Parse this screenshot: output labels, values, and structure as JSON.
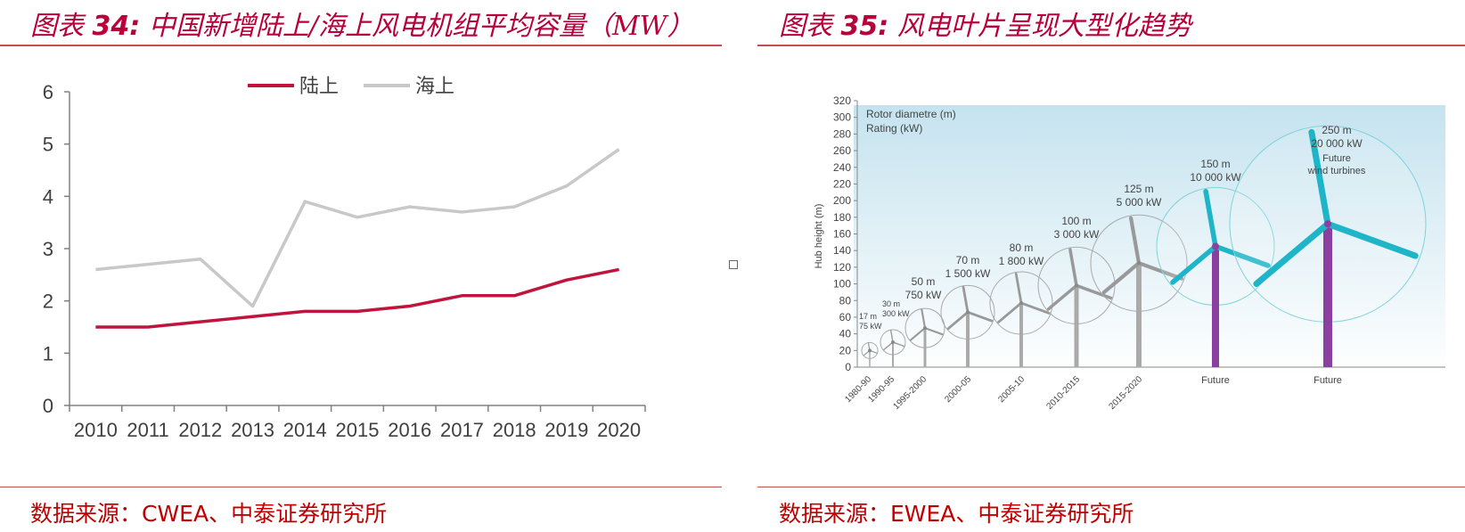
{
  "left": {
    "header": {
      "prefix": "图表 ",
      "num": "34:",
      "title": " 中国新增陆上/海上风电机组平均容量（MW）"
    },
    "source": "数据来源：CWEA、中泰证券研究所",
    "chart_data": {
      "type": "line",
      "title": "中国新增陆上/海上风电机组平均容量（MW）",
      "x": [
        "2010",
        "2011",
        "2012",
        "2013",
        "2014",
        "2015",
        "2016",
        "2017",
        "2018",
        "2019",
        "2020"
      ],
      "series": [
        {
          "name": "陆上",
          "color": "#c0143c",
          "values": [
            1.5,
            1.5,
            1.6,
            1.7,
            1.8,
            1.8,
            1.9,
            2.1,
            2.1,
            2.4,
            2.6
          ]
        },
        {
          "name": "海上",
          "color": "#c8c8c8",
          "values": [
            2.6,
            2.7,
            2.8,
            1.9,
            3.9,
            3.6,
            3.8,
            3.7,
            3.8,
            4.2,
            4.9
          ]
        }
      ],
      "yticks": [
        "0",
        "1",
        "2",
        "3",
        "4",
        "5",
        "6"
      ],
      "ylim": [
        0,
        6
      ],
      "legend_position": "top-center",
      "grid": false
    }
  },
  "right": {
    "header": {
      "prefix": "图表 ",
      "num": "35:",
      "title": " 风电叶片呈现大型化趋势"
    },
    "source": "数据来源：EWEA、中泰证券研究所",
    "figure": {
      "legend_line1": "Rotor diametre (m)",
      "legend_line2": "Rating (kW)",
      "y_axis_label": "Hub height (m)",
      "yticks": [
        "0",
        "20",
        "40",
        "60",
        "80",
        "100",
        "120",
        "140",
        "160",
        "180",
        "200",
        "220",
        "240",
        "260",
        "280",
        "300",
        "320"
      ],
      "turbines": [
        {
          "period": "1980-90",
          "diameter": "17 m",
          "rating": "75 kW"
        },
        {
          "period": "1990-95",
          "diameter": "30 m",
          "rating": "300 kW"
        },
        {
          "period": "1995-2000",
          "diameter": "50 m",
          "rating": "750 kW"
        },
        {
          "period": "2000-05",
          "diameter": "70 m",
          "rating": "1 500 kW"
        },
        {
          "period": "2005-10",
          "diameter": "80 m",
          "rating": "1 800 kW"
        },
        {
          "period": "2010-2015",
          "diameter": "100 m",
          "rating": "3 000 kW"
        },
        {
          "period": "2015-2020",
          "diameter": "125 m",
          "rating": "5 000 kW"
        },
        {
          "period": "Future",
          "diameter": "150 m",
          "rating": "10 000 kW"
        },
        {
          "period": "Future",
          "diameter": "250 m",
          "rating": "20 000 kW",
          "note1": "Future",
          "note2": "wind turbines"
        }
      ]
    }
  }
}
